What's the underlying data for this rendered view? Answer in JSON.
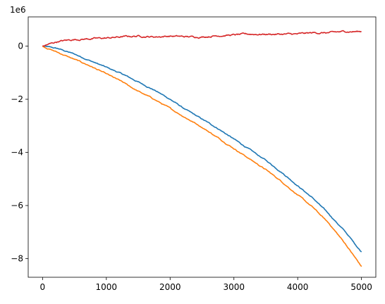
{
  "chart_data": {
    "type": "line",
    "title": "",
    "xlabel": "",
    "ylabel": "",
    "y_offset_label": "1e6",
    "xlim": [
      -225,
      5225
    ],
    "ylim": [
      -8.7,
      1.1
    ],
    "x_ticks": [
      0,
      1000,
      2000,
      3000,
      4000,
      5000
    ],
    "x_tick_labels": [
      "0",
      "1000",
      "2000",
      "3000",
      "4000",
      "5000"
    ],
    "y_ticks": [
      0,
      -2,
      -4,
      -6,
      -8
    ],
    "y_tick_labels": [
      "0",
      "−2",
      "−4",
      "−6",
      "−8"
    ],
    "grid": false,
    "legend": "none",
    "x": [
      0,
      250,
      500,
      750,
      1000,
      1250,
      1500,
      1750,
      2000,
      2250,
      2500,
      2750,
      3000,
      3250,
      3500,
      3750,
      4000,
      4250,
      4500,
      4750,
      5000
    ],
    "series": [
      {
        "color": "#1f77b4",
        "values": [
          0,
          -0.1,
          -0.3,
          -0.55,
          -0.8,
          -1.05,
          -1.35,
          -1.65,
          -2.0,
          -2.4,
          -2.75,
          -3.1,
          -3.5,
          -3.9,
          -4.3,
          -4.75,
          -5.25,
          -5.75,
          -6.35,
          -7.0,
          -7.75
        ]
      },
      {
        "color": "#ff7f0e",
        "values": [
          0,
          -0.25,
          -0.5,
          -0.75,
          -1.05,
          -1.35,
          -1.7,
          -2.0,
          -2.35,
          -2.7,
          -3.05,
          -3.45,
          -3.85,
          -4.25,
          -4.65,
          -5.1,
          -5.6,
          -6.1,
          -6.7,
          -7.45,
          -8.3
        ]
      },
      {
        "color": "#d62728",
        "values": [
          0,
          0.18,
          0.25,
          0.28,
          0.3,
          0.35,
          0.38,
          0.35,
          0.38,
          0.35,
          0.35,
          0.4,
          0.42,
          0.45,
          0.45,
          0.45,
          0.45,
          0.5,
          0.5,
          0.55,
          0.55
        ]
      }
    ]
  }
}
